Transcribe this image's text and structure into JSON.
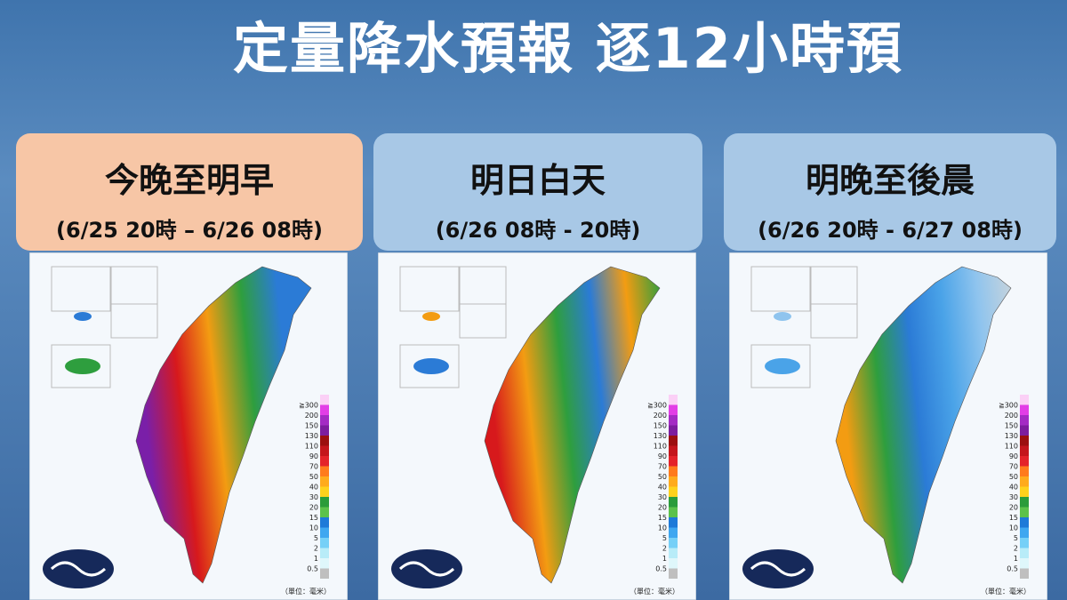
{
  "header": {
    "title": "定量降水預報 逐12小時預"
  },
  "panels": [
    {
      "heading": "今晚至明早",
      "period": "(6/25 20時 – 6/26 08時)"
    },
    {
      "heading": "明日白天",
      "period": "(6/26 08時 - 20時)"
    },
    {
      "heading": "明晚至後晨",
      "period": "(6/26 20時 - 6/27 08時)"
    }
  ],
  "legend": {
    "labels": [
      "≧300",
      "200",
      "150",
      "130",
      "110",
      "90",
      "70",
      "50",
      "40",
      "30",
      "20",
      "15",
      "10",
      "5",
      "2",
      "1",
      "0.5"
    ],
    "unit": "（單位：毫米）"
  }
}
